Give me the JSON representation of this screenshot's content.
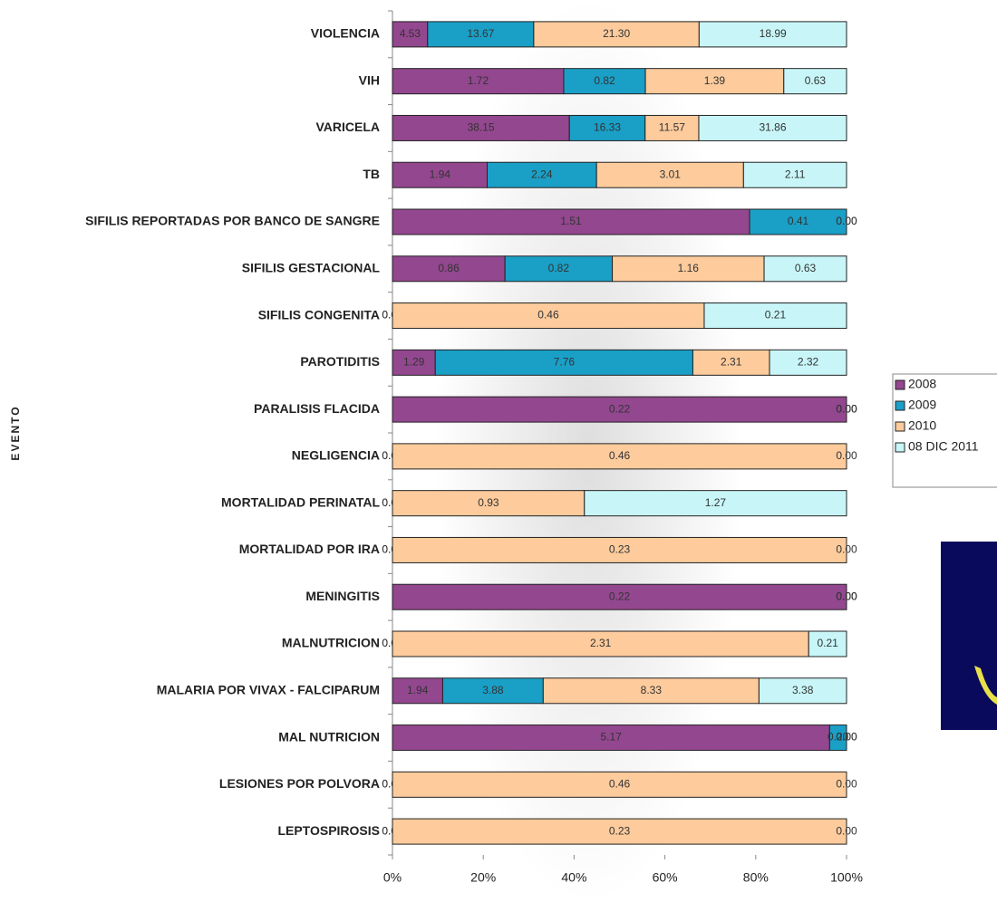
{
  "chart_data": {
    "type": "bar",
    "orientation": "horizontal",
    "stacking": "percent",
    "y_label": "EVENTO",
    "categories": [
      "VIOLENCIA",
      "VIH",
      "VARICELA",
      "TB",
      "SIFILIS REPORTADAS POR BANCO DE SANGRE",
      "SIFILIS GESTACIONAL",
      "SIFILIS CONGENITA",
      "PAROTIDITIS",
      "PARALISIS FLACIDA",
      "NEGLIGENCIA",
      "MORTALIDAD PERINATAL",
      "MORTALIDAD POR IRA",
      "MENINGITIS",
      "MALNUTRICION",
      "MALARIA POR VIVAX - FALCIPARUM",
      "MAL NUTRICION",
      "LESIONES POR POLVORA",
      "LEPTOSPIROSIS"
    ],
    "series": [
      {
        "name": "2008",
        "color": "#93478f",
        "values": [
          4.53,
          1.72,
          38.15,
          1.94,
          1.51,
          0.86,
          0,
          1.29,
          0.22,
          0,
          0,
          0,
          0.22,
          0,
          1.94,
          5.17,
          0,
          0
        ],
        "value_labels": [
          "4.53",
          "1.72",
          "38.15",
          "1.94",
          "1.51",
          "0.86",
          "0.00",
          "1.29",
          "0.22",
          "0.00",
          "0.00",
          "0.00",
          "0.22",
          "0.00",
          "1.94",
          "5.17",
          "0.00",
          "0.00"
        ]
      },
      {
        "name": "2009",
        "color": "#1a9fc6",
        "values": [
          13.67,
          0.82,
          16.33,
          2.24,
          0.41,
          0.82,
          0,
          7.76,
          0,
          0,
          0,
          0,
          0,
          0,
          3.88,
          0.2,
          0,
          0
        ],
        "value_labels": [
          "13.67",
          "0.82",
          "16.33",
          "2.24",
          "0.41",
          "0.82",
          "0.00",
          "7.76",
          "0.00",
          "0.00",
          "0.00",
          "0.00",
          "0.00",
          "0.00",
          "3.88",
          "0.20",
          "0.00",
          "0.00"
        ]
      },
      {
        "name": "2010",
        "color": "#fdcb9c",
        "values": [
          21.3,
          1.39,
          11.57,
          3.01,
          0,
          1.16,
          0.46,
          2.31,
          0,
          0.46,
          0.93,
          0.23,
          0,
          2.31,
          8.33,
          0,
          0.46,
          0.23
        ],
        "value_labels": [
          "21.30",
          "1.39",
          "11.57",
          "3.01",
          "0.00",
          "1.16",
          "0.46",
          "2.31",
          "0.00",
          "0.46",
          "0.93",
          "0.23",
          "0.00",
          "2.31",
          "8.33",
          "0.00",
          "0.46",
          "0.23"
        ]
      },
      {
        "name": "08 DIC 2011",
        "color": "#c8f6f8",
        "values": [
          18.99,
          0.63,
          31.86,
          2.11,
          0,
          0.63,
          0.21,
          2.32,
          0,
          0,
          1.27,
          0,
          0,
          0.21,
          3.38,
          0,
          0,
          0
        ],
        "value_labels": [
          "18.99",
          "0.63",
          "31.86",
          "2.11",
          "0.00",
          "0.63",
          "0.21",
          "2.32",
          "0.00",
          "0.00",
          "1.27",
          "0.00",
          "0.00",
          "0.21",
          "3.38",
          "0.00",
          "0.00",
          "0.00"
        ]
      }
    ],
    "xlim": [
      0,
      100
    ],
    "xticks": [
      {
        "value": 0,
        "label": "0%"
      },
      {
        "value": 20,
        "label": "20%"
      },
      {
        "value": 40,
        "label": "40%"
      },
      {
        "value": 60,
        "label": "60%"
      },
      {
        "value": 80,
        "label": "80%"
      },
      {
        "value": 100,
        "label": "100%"
      }
    ],
    "legend": "right"
  }
}
